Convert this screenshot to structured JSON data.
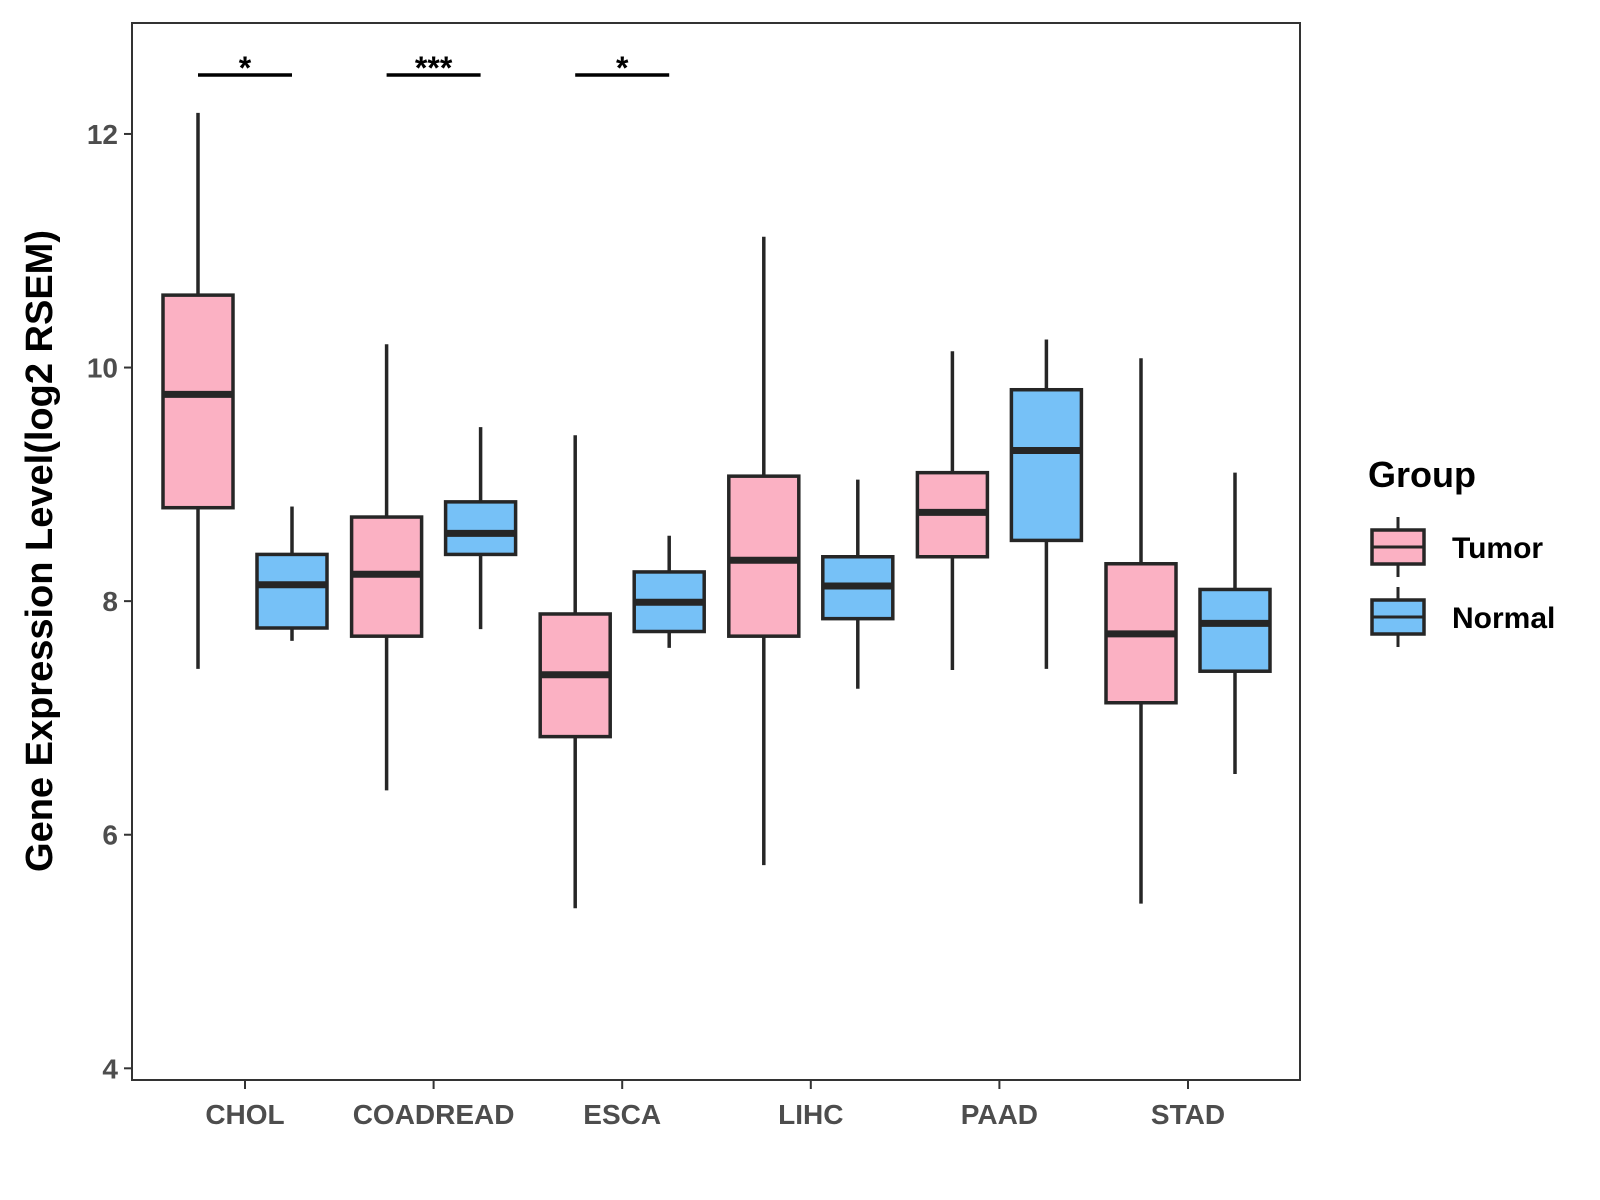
{
  "chart_data": {
    "type": "boxplot",
    "title": "",
    "xlabel": "",
    "ylabel": "Gene Expression Level(log2 RSEM)",
    "ylim": [
      3.9,
      12.95
    ],
    "yticks": [
      4,
      6,
      8,
      10,
      12
    ],
    "categories": [
      "CHOL",
      "COADREAD",
      "ESCA",
      "LIHC",
      "PAAD",
      "STAD"
    ],
    "legend": {
      "title": "Group",
      "position": "right"
    },
    "series": [
      {
        "name": "Tumor",
        "color": "#FBB1C3",
        "boxes": [
          {
            "min": 7.42,
            "q1": 8.8,
            "median": 9.77,
            "q3": 10.62,
            "max": 12.18
          },
          {
            "min": 6.38,
            "q1": 7.7,
            "median": 8.23,
            "q3": 8.72,
            "max": 10.2
          },
          {
            "min": 5.37,
            "q1": 6.84,
            "median": 7.37,
            "q3": 7.89,
            "max": 9.42
          },
          {
            "min": 5.74,
            "q1": 7.7,
            "median": 8.35,
            "q3": 9.07,
            "max": 11.12
          },
          {
            "min": 7.41,
            "q1": 8.38,
            "median": 8.76,
            "q3": 9.1,
            "max": 10.14
          },
          {
            "min": 5.41,
            "q1": 7.13,
            "median": 7.72,
            "q3": 8.32,
            "max": 10.08
          }
        ]
      },
      {
        "name": "Normal",
        "color": "#76C1F7",
        "boxes": [
          {
            "min": 7.66,
            "q1": 7.77,
            "median": 8.14,
            "q3": 8.4,
            "max": 8.81
          },
          {
            "min": 7.76,
            "q1": 8.4,
            "median": 8.58,
            "q3": 8.85,
            "max": 9.49
          },
          {
            "min": 7.6,
            "q1": 7.74,
            "median": 7.99,
            "q3": 8.25,
            "max": 8.56
          },
          {
            "min": 7.25,
            "q1": 7.85,
            "median": 8.13,
            "q3": 8.38,
            "max": 9.04
          },
          {
            "min": 7.42,
            "q1": 8.52,
            "median": 9.29,
            "q3": 9.81,
            "max": 10.24
          },
          {
            "min": 6.52,
            "q1": 7.4,
            "median": 7.81,
            "q3": 8.1,
            "max": 9.1
          }
        ]
      }
    ],
    "significance": [
      {
        "category": "CHOL",
        "label": "*"
      },
      {
        "category": "COADREAD",
        "label": "***"
      },
      {
        "category": "ESCA",
        "label": "*"
      }
    ]
  }
}
